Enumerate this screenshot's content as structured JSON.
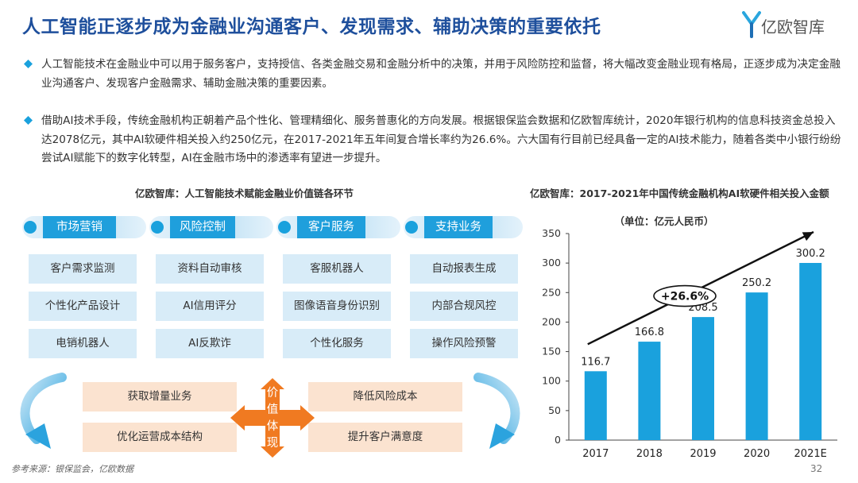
{
  "title": "人工智能正逐步成为金融业沟通客户、发现需求、辅助决策的重要依托",
  "brand": {
    "name": "亿欧智库",
    "accent": "#1e4f9c",
    "logo_colors": [
      "#2aa6de",
      "#1e6fb5"
    ]
  },
  "bullets": [
    {
      "text": "人工智能技术在金融业中可以用于服务客户，支持授信、各类金融交易和金融分析中的决策，并用于风险防控和监督，将大幅改变金融业现有格局，正逐步成为决定金融业沟通客户、发现客户金融需求、辅助金融决策的重要因素。"
    },
    {
      "text": "借助AI技术手段，传统金融机构正朝着产品个性化、管理精细化、服务普惠化的方向发展。根据银保监会数据和亿欧智库统计，2020年银行机构的信息科技资金总投入达2078亿元，其中AI软硬件相关投入约250亿元，在2017-2021年五年间复合增长率约为26.6%。六大国有行目前已经具备一定的AI技术能力，随着各类中小银行纷纷尝试AI赋能下的数字化转型，AI在金融市场中的渗透率有望进一步提升。"
    }
  ],
  "diagram": {
    "title": "亿欧智库：人工智能技术赋能金融业价值链各环节",
    "columns": [
      {
        "label": "市场营销",
        "items": [
          "客户需求监测",
          "个性化产品设计",
          "电销机器人"
        ]
      },
      {
        "label": "风险控制",
        "items": [
          "资料自动审核",
          "AI信用评分",
          "AI反欺诈"
        ]
      },
      {
        "label": "客户服务",
        "items": [
          "客服机器人",
          "图像语音身份识别",
          "个性化服务"
        ]
      },
      {
        "label": "支持业务",
        "items": [
          "自动报表生成",
          "内部合规风控",
          "操作风险预警"
        ]
      }
    ],
    "value_label": [
      "价",
      "值",
      "体",
      "现"
    ],
    "values_left": [
      "获取增量业务",
      "优化运营成本结构"
    ],
    "values_right": [
      "降低风险成本",
      "提升客户满意度"
    ],
    "colors": {
      "category": "#1f9fdc",
      "item_bg": "#d8ecf8",
      "value_bg": "#fbe3d0",
      "arrow": "#f07a21"
    }
  },
  "chart_title": "亿欧智库：2017-2021年中国传统金融机构AI软硬件相关投入金额",
  "chart_data": {
    "type": "bar",
    "title": "亿欧智库：2017-2021年中国传统金融机构AI软硬件相关投入金额",
    "unit_label": "（单位：亿元人民币）",
    "categories": [
      "2017",
      "2018",
      "2019",
      "2020",
      "2021E"
    ],
    "values": [
      116.7,
      166.8,
      208.5,
      250.2,
      300.2
    ],
    "value_labels": [
      "116.7",
      "166.8",
      "208.5",
      "250.2",
      "300.2"
    ],
    "ylim": [
      0,
      350
    ],
    "yticks": [
      0,
      50,
      100,
      150,
      200,
      250,
      300,
      350
    ],
    "annotation": "+26.6%",
    "bar_color": "#1aa1dd",
    "grid": false
  },
  "footer": {
    "source": "参考来源：银保监会，亿欧数据",
    "page": "32"
  }
}
